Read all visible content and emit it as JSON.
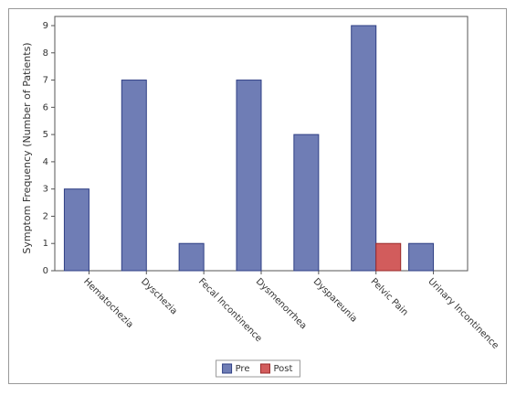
{
  "chart_data": {
    "type": "bar",
    "y_label": "Symptom Frequency (Number of Patients)",
    "categories": [
      "Hematochezia",
      "Dyschezia",
      "Fecal Incontinence",
      "Dysmenorrhea",
      "Dyspareunia",
      "Pelvic Pain",
      "Urinary Incontinence"
    ],
    "series": [
      {
        "name": "Pre",
        "color": "#6f7db5",
        "values": [
          3,
          7,
          1,
          7,
          5,
          9,
          1
        ]
      },
      {
        "name": "Post",
        "color": "#d25c5c",
        "values": [
          0,
          0,
          0,
          0,
          0,
          1,
          0
        ]
      }
    ],
    "ylim": [
      0,
      9
    ],
    "yticks": [
      0,
      1,
      2,
      3,
      4,
      5,
      6,
      7,
      8,
      9
    ],
    "legend": "bottom"
  }
}
